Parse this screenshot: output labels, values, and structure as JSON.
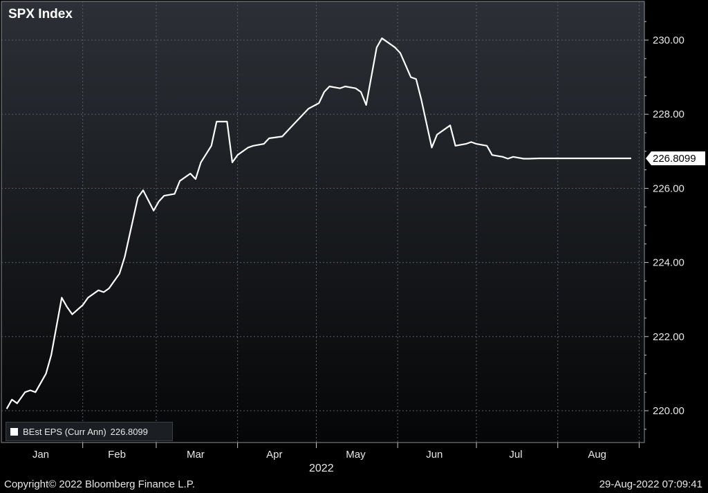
{
  "chart_data": {
    "type": "line",
    "title": "SPX Index",
    "year_label": "2022",
    "x_tick_labels": [
      "Jan",
      "Feb",
      "Mar",
      "Apr",
      "May",
      "Jun",
      "Jul",
      "Aug"
    ],
    "y_tick_labels": [
      "220.00",
      "222.00",
      "224.00",
      "226.00",
      "228.00",
      "230.00"
    ],
    "ylim": [
      219.1,
      231.0
    ],
    "grid": true,
    "legend": {
      "label": "BEst EPS (Curr Ann)",
      "value": "226.8099",
      "position": "bottom-left"
    },
    "last_value_label": "226.8099",
    "series": [
      {
        "name": "BEst EPS (Curr Ann)",
        "color": "#ffffff",
        "x": [
          "2022-01-03",
          "2022-01-05",
          "2022-01-07",
          "2022-01-10",
          "2022-01-12",
          "2022-01-14",
          "2022-01-18",
          "2022-01-20",
          "2022-01-24",
          "2022-01-26",
          "2022-01-28",
          "2022-02-01",
          "2022-02-03",
          "2022-02-07",
          "2022-02-09",
          "2022-02-11",
          "2022-02-15",
          "2022-02-17",
          "2022-02-22",
          "2022-02-24",
          "2022-02-28",
          "2022-03-02",
          "2022-03-04",
          "2022-03-08",
          "2022-03-10",
          "2022-03-14",
          "2022-03-16",
          "2022-03-18",
          "2022-03-22",
          "2022-03-24",
          "2022-03-28",
          "2022-03-30",
          "2022-04-01",
          "2022-04-05",
          "2022-04-07",
          "2022-04-11",
          "2022-04-13",
          "2022-04-18",
          "2022-04-20",
          "2022-04-22",
          "2022-04-26",
          "2022-04-28",
          "2022-05-02",
          "2022-05-04",
          "2022-05-06",
          "2022-05-10",
          "2022-05-12",
          "2022-05-16",
          "2022-05-18",
          "2022-05-20",
          "2022-05-24",
          "2022-05-26",
          "2022-05-31",
          "2022-06-02",
          "2022-06-06",
          "2022-06-08",
          "2022-06-10",
          "2022-06-14",
          "2022-06-16",
          "2022-06-21",
          "2022-06-23",
          "2022-06-27",
          "2022-06-29",
          "2022-07-01",
          "2022-07-05",
          "2022-07-07",
          "2022-07-11",
          "2022-07-13",
          "2022-07-15",
          "2022-07-19",
          "2022-07-21",
          "2022-07-25",
          "2022-07-27",
          "2022-07-29",
          "2022-08-02",
          "2022-08-04",
          "2022-08-08",
          "2022-08-10",
          "2022-08-12",
          "2022-08-16",
          "2022-08-18",
          "2022-08-22",
          "2022-08-24",
          "2022-08-26",
          "2022-08-29"
        ],
        "values": [
          220.05,
          220.3,
          220.2,
          220.5,
          220.55,
          220.5,
          221.0,
          221.5,
          223.05,
          222.8,
          222.6,
          222.85,
          223.05,
          223.25,
          223.2,
          223.3,
          223.7,
          224.15,
          225.75,
          225.95,
          225.4,
          225.65,
          225.8,
          225.85,
          226.2,
          226.4,
          226.25,
          226.7,
          227.15,
          227.8,
          227.8,
          226.7,
          226.9,
          227.1,
          227.15,
          227.2,
          227.35,
          227.4,
          227.55,
          227.7,
          228.0,
          228.15,
          228.3,
          228.6,
          228.75,
          228.7,
          228.75,
          228.7,
          228.6,
          228.25,
          229.8,
          230.05,
          229.8,
          229.65,
          229.0,
          228.95,
          228.4,
          227.1,
          227.45,
          227.7,
          227.15,
          227.2,
          227.25,
          227.2,
          227.15,
          226.9,
          226.85,
          226.8,
          226.85,
          226.8,
          226.8,
          226.81,
          226.81,
          226.81,
          226.81,
          226.81,
          226.81,
          226.81,
          226.81,
          226.81,
          226.81,
          226.81,
          226.81,
          226.81,
          226.8099
        ]
      }
    ]
  },
  "footer": {
    "copyright": "Copyright© 2022 Bloomberg Finance L.P.",
    "timestamp": "29-Aug-2022 07:09:41"
  },
  "colors": {
    "line": "#ffffff",
    "grid": "#5a5f66",
    "bg_top": "#2c3036",
    "bg_bottom": "#050607"
  }
}
